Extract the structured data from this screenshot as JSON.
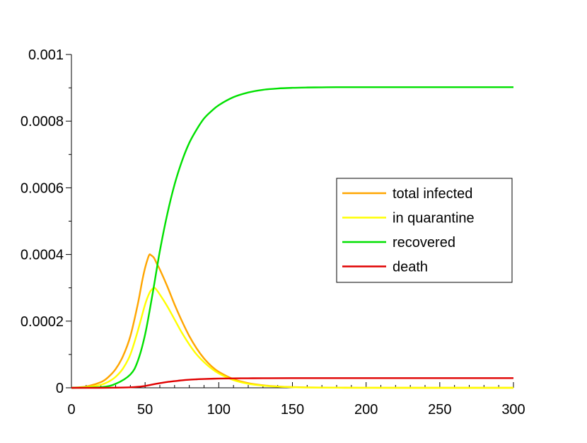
{
  "chart_data": {
    "type": "line",
    "title": "",
    "xlabel": "",
    "ylabel": "",
    "xlim": [
      0,
      300
    ],
    "ylim": [
      0,
      0.001
    ],
    "x_ticks": [
      0,
      50,
      100,
      150,
      200,
      250,
      300
    ],
    "x_tick_labels": [
      "0",
      "50",
      "100",
      "150",
      "200",
      "250",
      "300"
    ],
    "y_ticks": [
      0,
      0.0002,
      0.0004,
      0.0006,
      0.0008,
      0.001
    ],
    "y_tick_labels": [
      "0",
      "0.0002",
      "0.0004",
      "0.0006",
      "0.0008",
      "0.001"
    ],
    "grid": false,
    "legend_position": "right",
    "series": [
      {
        "name": "total infected",
        "color": "#ffa500",
        "x": [
          0,
          10,
          20,
          25,
          30,
          35,
          40,
          45,
          48,
          50,
          52,
          53,
          54,
          56,
          58,
          60,
          65,
          70,
          75,
          80,
          85,
          90,
          95,
          100,
          110,
          120,
          130,
          140,
          150,
          160,
          180,
          200,
          250,
          300
        ],
        "y": [
          0,
          4e-06,
          1.7e-05,
          3.2e-05,
          5.6e-05,
          9.5e-05,
          0.000155,
          0.00025,
          0.00032,
          0.00036,
          0.00039,
          0.0004,
          0.000398,
          0.00039,
          0.000372,
          0.000355,
          0.000305,
          0.00025,
          0.0002,
          0.000155,
          0.000118,
          8.8e-05,
          6.5e-05,
          4.8e-05,
          2.6e-05,
          1.4e-05,
          7.5e-06,
          4e-06,
          2.1e-06,
          1.1e-06,
          4e-07,
          1e-07,
          0,
          0
        ]
      },
      {
        "name": "in quarantine",
        "color": "#ffff00",
        "x": [
          0,
          10,
          20,
          25,
          30,
          35,
          40,
          45,
          50,
          53,
          55,
          56,
          57,
          60,
          65,
          70,
          75,
          80,
          85,
          90,
          95,
          100,
          110,
          120,
          130,
          140,
          150,
          160,
          180,
          200,
          250,
          300
        ],
        "y": [
          0,
          2e-06,
          9e-06,
          1.8e-05,
          3.3e-05,
          5.8e-05,
          0.0001,
          0.00017,
          0.00025,
          0.000285,
          0.000297,
          0.0003,
          0.000298,
          0.00028,
          0.000245,
          0.000205,
          0.000165,
          0.00013,
          0.0001,
          7.7e-05,
          5.8e-05,
          4.3e-05,
          2.3e-05,
          1.2e-05,
          6.5e-06,
          3.5e-06,
          1.8e-06,
          1e-06,
          3e-07,
          1e-07,
          0,
          0
        ]
      },
      {
        "name": "recovered",
        "color": "#00e000",
        "x": [
          0,
          20,
          30,
          40,
          45,
          50,
          55,
          60,
          65,
          70,
          75,
          80,
          85,
          90,
          95,
          100,
          110,
          120,
          130,
          140,
          150,
          160,
          170,
          180,
          200,
          250,
          300
        ],
        "y": [
          0,
          2e-06,
          1.2e-05,
          4e-05,
          8e-05,
          0.00016,
          0.00028,
          0.00041,
          0.00052,
          0.00061,
          0.00068,
          0.000735,
          0.000775,
          0.000808,
          0.00083,
          0.000848,
          0.000872,
          0.000886,
          0.000894,
          0.000898,
          0.0009,
          0.000901,
          0.0009015,
          0.000902,
          0.000902,
          0.000902,
          0.000902
        ]
      },
      {
        "name": "death",
        "color": "#e00000",
        "x": [
          0,
          20,
          30,
          40,
          45,
          50,
          55,
          60,
          65,
          70,
          75,
          80,
          85,
          90,
          100,
          110,
          120,
          130,
          150,
          200,
          250,
          300
        ],
        "y": [
          0,
          0,
          5e-07,
          1.5e-06,
          3e-06,
          5.5e-06,
          1e-05,
          1.4e-05,
          1.75e-05,
          2e-05,
          2.25e-05,
          2.43e-05,
          2.55e-05,
          2.65e-05,
          2.77e-05,
          2.83e-05,
          2.86e-05,
          2.88e-05,
          2.9e-05,
          2.9e-05,
          2.9e-05,
          2.9e-05
        ]
      }
    ]
  }
}
